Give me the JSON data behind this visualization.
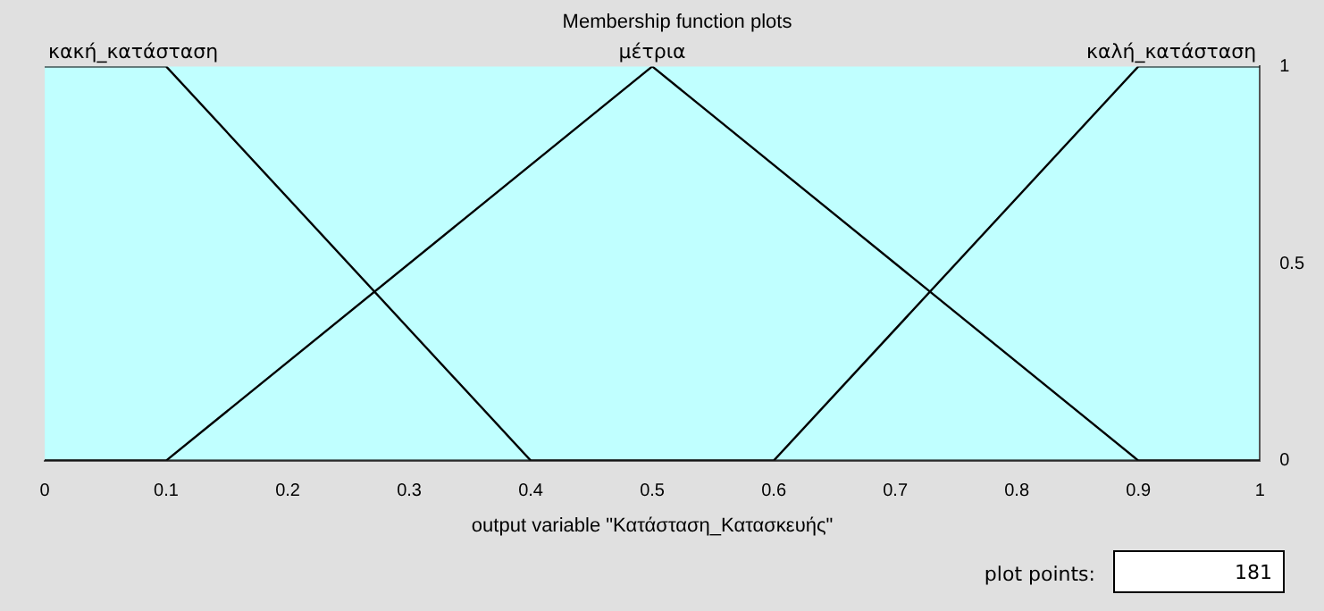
{
  "chart_data": {
    "type": "line",
    "title": "Membership function plots",
    "xlabel": "output variable \"Κατάσταση_Κατασκευής\"",
    "xlim": [
      0,
      1
    ],
    "xticks": [
      0,
      0.1,
      0.2,
      0.3,
      0.4,
      0.5,
      0.6,
      0.7,
      0.8,
      0.9,
      1
    ],
    "ylim": [
      0,
      1
    ],
    "yticks": [
      0,
      0.5,
      1
    ],
    "grid": false,
    "legend": false,
    "marker": "none",
    "line_style": "solid",
    "series": [
      {
        "name": "κακή_κατάσταση",
        "color": "#000000",
        "x": [
          0,
          0.1,
          0.4,
          1
        ],
        "values": [
          1,
          1,
          0,
          0
        ]
      },
      {
        "name": "μέτρια",
        "color": "#000000",
        "x": [
          0,
          0.1,
          0.5,
          0.9,
          1
        ],
        "values": [
          0,
          0,
          1,
          0,
          0
        ]
      },
      {
        "name": "καλή_κατάσταση",
        "color": "#000000",
        "x": [
          0,
          0.6,
          0.9,
          1
        ],
        "values": [
          0,
          0,
          1,
          1
        ]
      }
    ],
    "annotations": [
      "plot points:",
      "181"
    ]
  }
}
